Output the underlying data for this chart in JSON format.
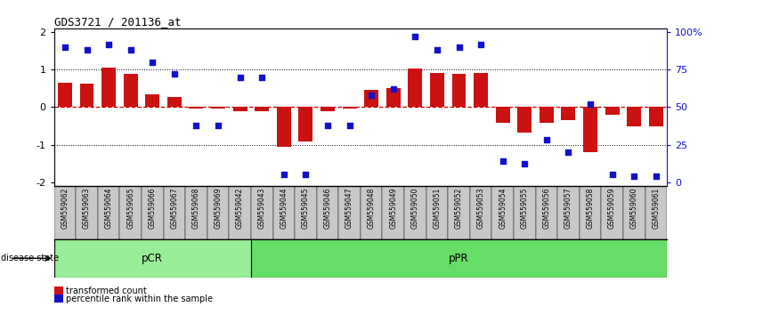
{
  "title": "GDS3721 / 201136_at",
  "samples": [
    "GSM559062",
    "GSM559063",
    "GSM559064",
    "GSM559065",
    "GSM559066",
    "GSM559067",
    "GSM559068",
    "GSM559069",
    "GSM559042",
    "GSM559043",
    "GSM559044",
    "GSM559045",
    "GSM559046",
    "GSM559047",
    "GSM559048",
    "GSM559049",
    "GSM559050",
    "GSM559051",
    "GSM559052",
    "GSM559053",
    "GSM559054",
    "GSM559055",
    "GSM559056",
    "GSM559057",
    "GSM559058",
    "GSM559059",
    "GSM559060",
    "GSM559061"
  ],
  "bar_values": [
    0.65,
    0.62,
    1.05,
    0.88,
    0.35,
    0.28,
    -0.05,
    -0.05,
    -0.1,
    -0.1,
    -1.05,
    -0.92,
    -0.12,
    -0.05,
    0.45,
    0.5,
    1.02,
    0.92,
    0.88,
    0.92,
    -0.42,
    -0.68,
    -0.42,
    -0.35,
    -1.2,
    -0.2,
    -0.52,
    -0.52
  ],
  "dot_values_pct": [
    90,
    88,
    92,
    88,
    80,
    72,
    38,
    38,
    70,
    70,
    5,
    5,
    38,
    38,
    58,
    62,
    97,
    88,
    90,
    92,
    14,
    12,
    28,
    20,
    52,
    5,
    4,
    4
  ],
  "group_pcr_count": 9,
  "group_ppr_count": 19,
  "ylim": [
    -2.1,
    2.1
  ],
  "yticks": [
    -2,
    -1,
    0,
    1,
    2
  ],
  "right_yticks": [
    0,
    25,
    50,
    75,
    100
  ],
  "bar_color": "#CC1111",
  "dot_color": "#1111CC",
  "zero_line_color": "#CC0000",
  "dotted_line_color": "#000000",
  "pcr_color": "#99EE99",
  "ppr_color": "#66DD66",
  "sample_bg_color": "#C8C8C8"
}
